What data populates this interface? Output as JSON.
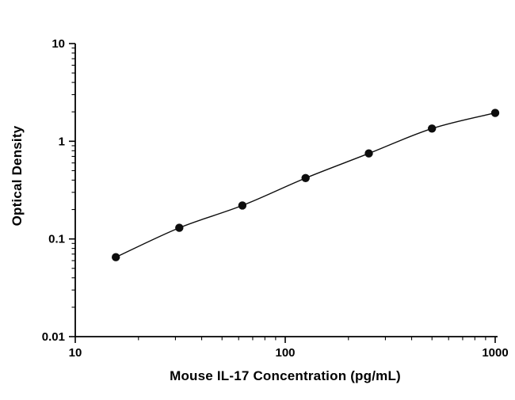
{
  "chart_data": {
    "type": "scatter",
    "title": "",
    "xlabel": "Mouse IL-17 Concentration (pg/mL)",
    "ylabel": "Optical Density",
    "x_scale": "log",
    "y_scale": "log",
    "xlim": [
      10,
      1000
    ],
    "ylim": [
      0.01,
      10
    ],
    "x_ticks": [
      10,
      100,
      1000
    ],
    "y_ticks": [
      0.01,
      0.1,
      1,
      10
    ],
    "grid": false,
    "legend": false,
    "series": [
      {
        "name": "standard-curve",
        "x": [
          15.6,
          31.3,
          62.5,
          125,
          250,
          500,
          1000
        ],
        "y": [
          0.065,
          0.13,
          0.22,
          0.42,
          0.75,
          1.35,
          1.95
        ],
        "marker": "circle",
        "marker_color": "#0d0d0d",
        "line_color": "#0d0d0d"
      }
    ],
    "colors": {
      "background": "#ffffff",
      "axis": "#000000",
      "text": "#000000"
    }
  }
}
